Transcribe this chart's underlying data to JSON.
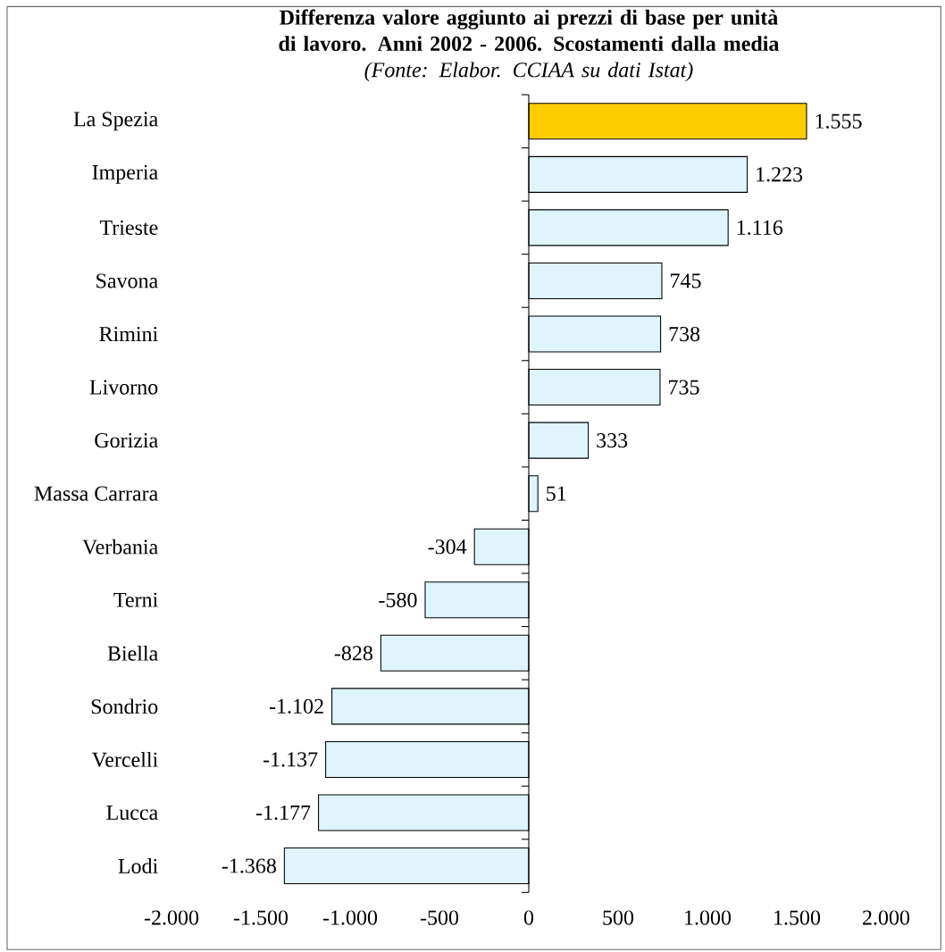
{
  "chart_data": {
    "type": "bar",
    "orientation": "horizontal",
    "title": "Differenza valore aggiunto ai prezzi di base per unità di lavoro. Anni 2002 - 2006. Scostamenti dalla media",
    "subtitle": "(Fonte: Elabor. CCIAA su dati Istat)",
    "categories": [
      "La Spezia",
      "Imperia",
      "Trieste",
      "Savona",
      "Rimini",
      "Livorno",
      "Gorizia",
      "Massa Carrara",
      "Verbania",
      "Terni",
      "Biella",
      "Sondrio",
      "Vercelli",
      "Lucca",
      "Lodi"
    ],
    "values": [
      1555,
      1223,
      1116,
      745,
      738,
      735,
      333,
      51,
      -304,
      -580,
      -828,
      -1102,
      -1137,
      -1177,
      -1368
    ],
    "value_labels": [
      "1.555",
      "1.223",
      "1.116",
      "745",
      "738",
      "735",
      "333",
      "51",
      "-304",
      "-580",
      "-828",
      "-1.102",
      "-1.137",
      "-1.177",
      "-1.368"
    ],
    "colors": [
      "#ffcc00",
      "#dff4fb",
      "#dff4fb",
      "#dff4fb",
      "#dff4fb",
      "#dff4fb",
      "#dff4fb",
      "#dff4fb",
      "#dff4fb",
      "#dff4fb",
      "#dff4fb",
      "#dff4fb",
      "#dff4fb",
      "#dff4fb",
      "#dff4fb"
    ],
    "xlim": [
      -2000,
      2000
    ],
    "xticks": [
      {
        "value": -2000,
        "label": "-2.000"
      },
      {
        "value": -1500,
        "label": "-1.500"
      },
      {
        "value": -1000,
        "label": "-1.000"
      },
      {
        "value": -500,
        "label": "-500"
      },
      0,
      500,
      {
        "value": 1000,
        "label": "1.000"
      },
      {
        "value": 1500,
        "label": "1.500"
      },
      {
        "value": 2000,
        "label": "2.000"
      }
    ],
    "line_style": "solid"
  }
}
